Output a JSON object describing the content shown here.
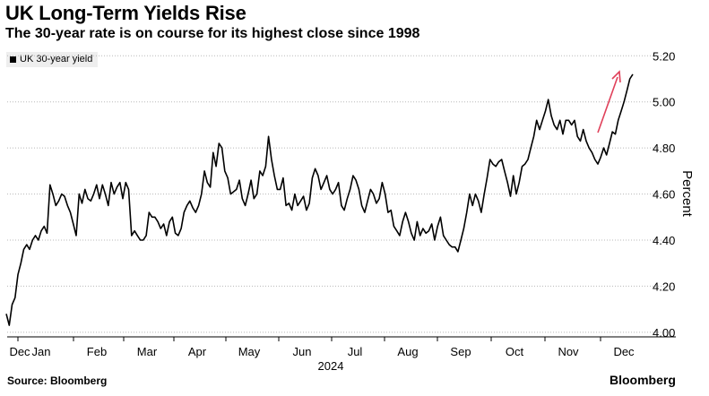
{
  "title": "UK Long-Term Yields Rise",
  "subtitle": "The 30-year rate is on course for its highest close since 1998",
  "source": "Source: Bloomberg",
  "brand": "Bloomberg",
  "colors": {
    "line": "#000000",
    "arrow": "#e0405a",
    "grid": "#b8b8b8"
  },
  "chart_data": {
    "type": "line",
    "title": "UK Long-Term Yields Rise",
    "subtitle": "The 30-year rate is on course for its highest close since 1998",
    "ylabel": "Percent",
    "xlabel": "",
    "year_label": "2024",
    "ylim": [
      3.98,
      5.24
    ],
    "yticks": [
      4.0,
      4.2,
      4.4,
      4.6,
      4.8,
      5.0,
      5.2
    ],
    "x_ticks": [
      "Dec",
      "Jan",
      "Feb",
      "Mar",
      "Apr",
      "May",
      "Jun",
      "Jul",
      "Aug",
      "Sep",
      "Oct",
      "Nov",
      "Dec"
    ],
    "grid": true,
    "legend_position": "top-left",
    "annotation": "red arrow pointing up at the end of the series",
    "series": [
      {
        "name": "UK 30-year yield",
        "values": [
          4.08,
          4.03,
          4.12,
          4.15,
          4.25,
          4.3,
          4.36,
          4.38,
          4.36,
          4.4,
          4.42,
          4.4,
          4.44,
          4.46,
          4.43,
          4.64,
          4.6,
          4.55,
          4.57,
          4.6,
          4.59,
          4.55,
          4.52,
          4.47,
          4.42,
          4.6,
          4.56,
          4.62,
          4.58,
          4.57,
          4.6,
          4.64,
          4.58,
          4.64,
          4.6,
          4.55,
          4.65,
          4.6,
          4.63,
          4.65,
          4.58,
          4.65,
          4.62,
          4.42,
          4.44,
          4.42,
          4.4,
          4.4,
          4.42,
          4.52,
          4.5,
          4.5,
          4.48,
          4.45,
          4.47,
          4.42,
          4.48,
          4.5,
          4.43,
          4.42,
          4.45,
          4.52,
          4.55,
          4.57,
          4.54,
          4.52,
          4.55,
          4.6,
          4.7,
          4.65,
          4.63,
          4.78,
          4.72,
          4.82,
          4.8,
          4.7,
          4.67,
          4.6,
          4.61,
          4.62,
          4.66,
          4.58,
          4.55,
          4.6,
          4.66,
          4.58,
          4.6,
          4.7,
          4.68,
          4.72,
          4.85,
          4.75,
          4.68,
          4.62,
          4.62,
          4.67,
          4.55,
          4.56,
          4.53,
          4.6,
          4.55,
          4.57,
          4.59,
          4.53,
          4.56,
          4.67,
          4.71,
          4.68,
          4.62,
          4.65,
          4.68,
          4.62,
          4.6,
          4.62,
          4.65,
          4.55,
          4.53,
          4.58,
          4.62,
          4.68,
          4.66,
          4.62,
          4.55,
          4.52,
          4.57,
          4.62,
          4.6,
          4.56,
          4.58,
          4.65,
          4.6,
          4.52,
          4.53,
          4.46,
          4.44,
          4.42,
          4.48,
          4.52,
          4.48,
          4.43,
          4.4,
          4.48,
          4.42,
          4.45,
          4.43,
          4.44,
          4.47,
          4.4,
          4.46,
          4.5,
          4.42,
          4.4,
          4.38,
          4.37,
          4.37,
          4.35,
          4.4,
          4.45,
          4.52,
          4.6,
          4.55,
          4.6,
          4.57,
          4.52,
          4.6,
          4.67,
          4.75,
          4.73,
          4.72,
          4.74,
          4.75,
          4.7,
          4.65,
          4.59,
          4.68,
          4.6,
          4.65,
          4.72,
          4.73,
          4.75,
          4.8,
          4.85,
          4.92,
          4.88,
          4.92,
          4.96,
          5.01,
          4.94,
          4.9,
          4.88,
          4.92,
          4.86,
          4.92,
          4.92,
          4.9,
          4.92,
          4.85,
          4.83,
          4.88,
          4.83,
          4.8,
          4.78,
          4.75,
          4.73,
          4.76,
          4.8,
          4.77,
          4.82,
          4.87,
          4.86,
          4.92,
          4.96,
          5.0,
          5.05,
          5.1,
          5.12
        ]
      }
    ]
  }
}
